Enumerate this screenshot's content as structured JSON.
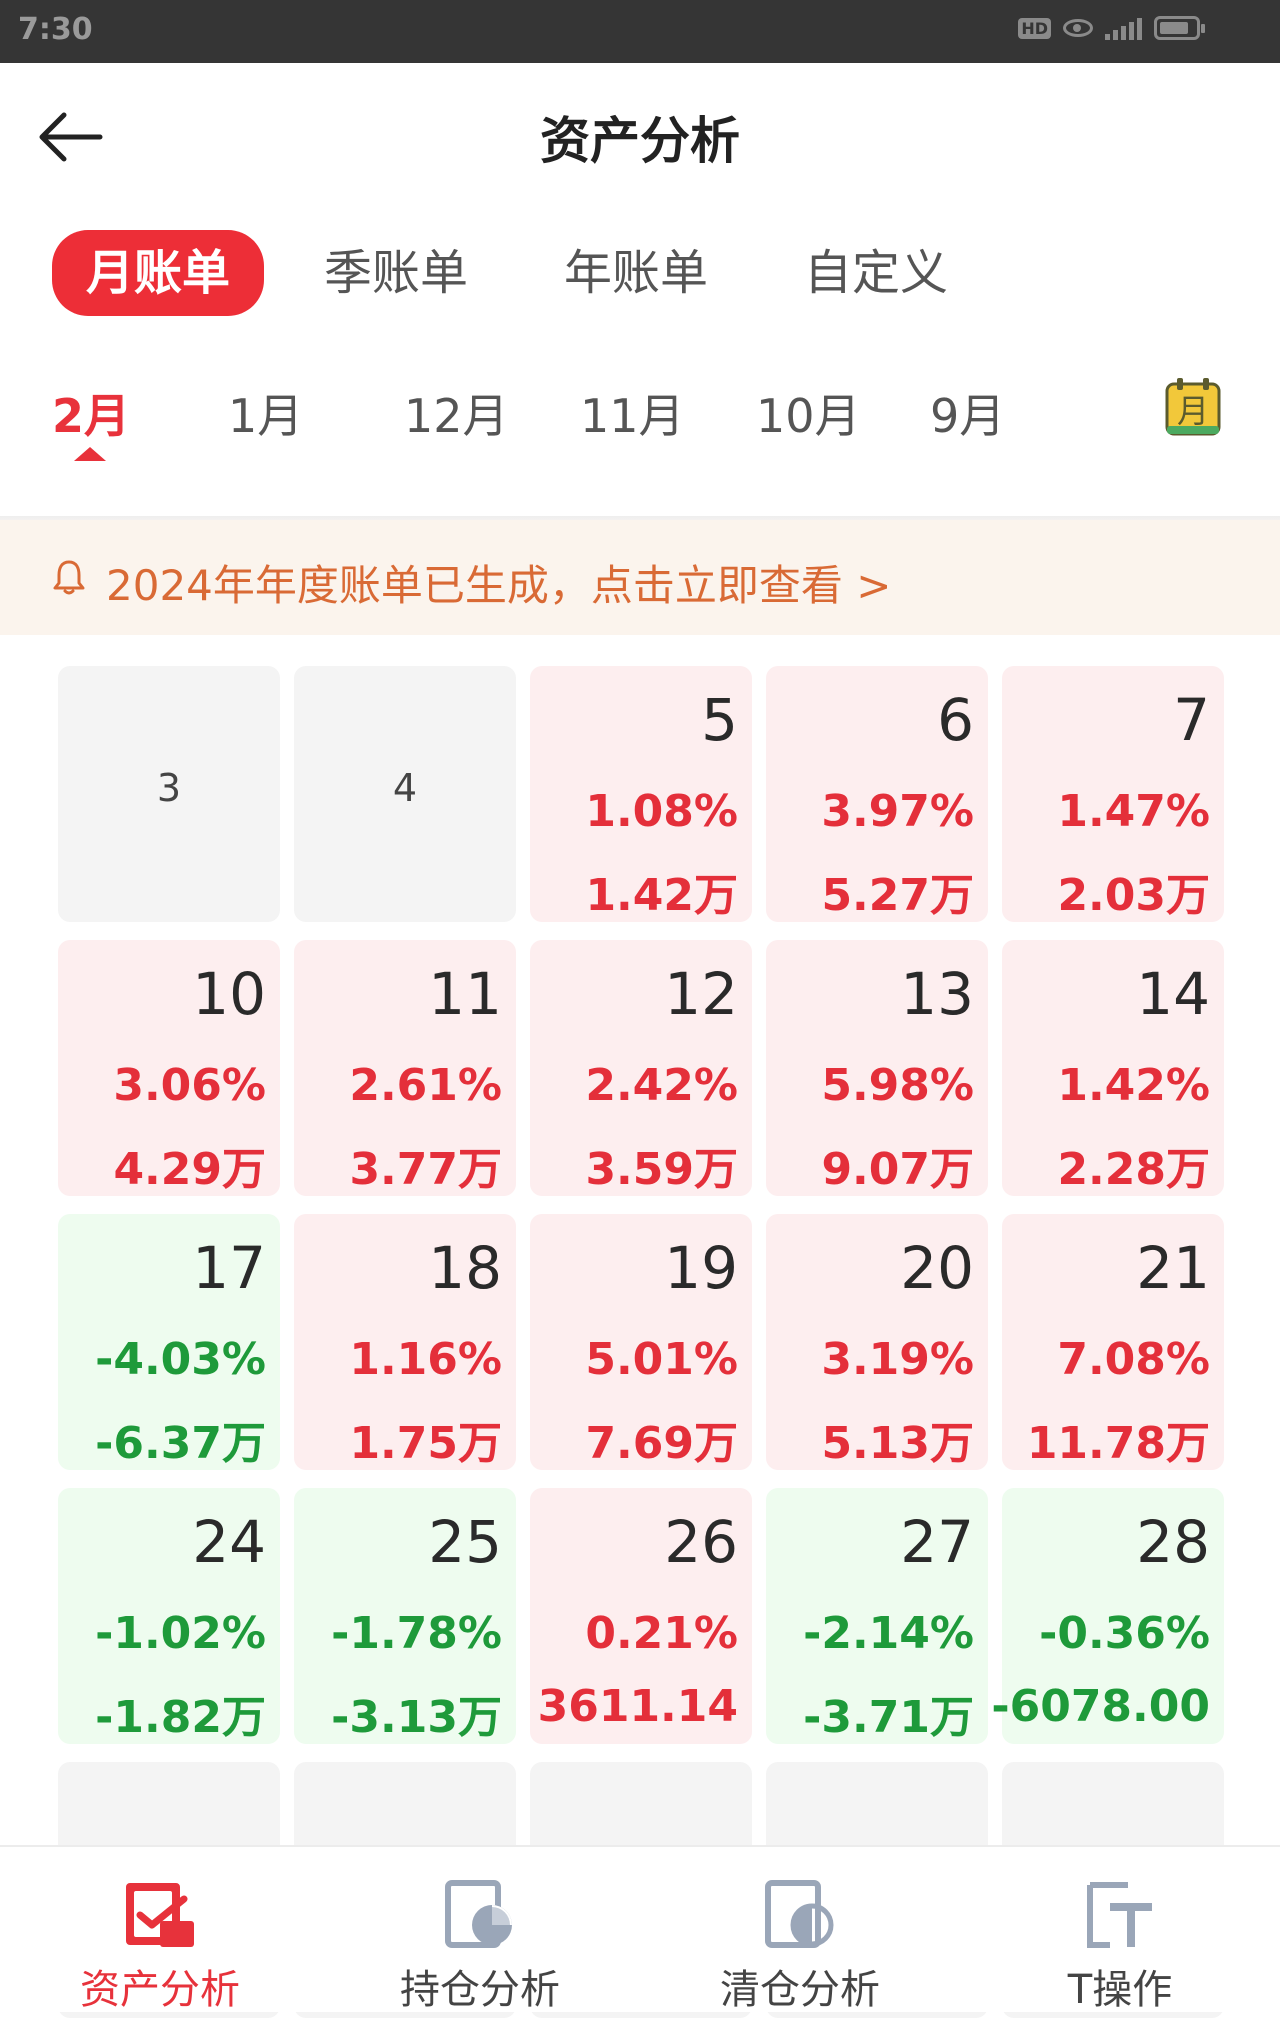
{
  "status_bar": {
    "time": "7:30",
    "hd": "HD",
    "network": "4G"
  },
  "header": {
    "title": "资产分析"
  },
  "period_tabs": [
    "月账单",
    "季账单",
    "年账单",
    "自定义"
  ],
  "months": [
    "2月",
    "1月",
    "12月",
    "11月",
    "10月",
    "9月"
  ],
  "calendar_icon_char": "月",
  "notice": {
    "text": "2024年年度账单已生成，点击立即查看 >"
  },
  "calendar": [
    [
      {
        "day": "3",
        "pct": "",
        "amt": "",
        "tone": "gray"
      },
      {
        "day": "4",
        "pct": "",
        "amt": "",
        "tone": "gray"
      },
      {
        "day": "5",
        "pct": "1.08%",
        "amt": "1.42万",
        "tone": "red"
      },
      {
        "day": "6",
        "pct": "3.97%",
        "amt": "5.27万",
        "tone": "red"
      },
      {
        "day": "7",
        "pct": "1.47%",
        "amt": "2.03万",
        "tone": "red"
      }
    ],
    [
      {
        "day": "10",
        "pct": "3.06%",
        "amt": "4.29万",
        "tone": "red"
      },
      {
        "day": "11",
        "pct": "2.61%",
        "amt": "3.77万",
        "tone": "red"
      },
      {
        "day": "12",
        "pct": "2.42%",
        "amt": "3.59万",
        "tone": "red"
      },
      {
        "day": "13",
        "pct": "5.98%",
        "amt": "9.07万",
        "tone": "red"
      },
      {
        "day": "14",
        "pct": "1.42%",
        "amt": "2.28万",
        "tone": "red"
      }
    ],
    [
      {
        "day": "17",
        "pct": "-4.03%",
        "amt": "-6.37万",
        "tone": "green"
      },
      {
        "day": "18",
        "pct": "1.16%",
        "amt": "1.75万",
        "tone": "red"
      },
      {
        "day": "19",
        "pct": "5.01%",
        "amt": "7.69万",
        "tone": "red"
      },
      {
        "day": "20",
        "pct": "3.19%",
        "amt": "5.13万",
        "tone": "red"
      },
      {
        "day": "21",
        "pct": "7.08%",
        "amt": "11.78万",
        "tone": "red"
      }
    ],
    [
      {
        "day": "24",
        "pct": "-1.02%",
        "amt": "-1.82万",
        "tone": "green"
      },
      {
        "day": "25",
        "pct": "-1.78%",
        "amt": "-3.13万",
        "tone": "green"
      },
      {
        "day": "26",
        "pct": "0.21%",
        "amt": "3611.14",
        "tone": "red"
      },
      {
        "day": "27",
        "pct": "-2.14%",
        "amt": "-3.71万",
        "tone": "green"
      },
      {
        "day": "28",
        "pct": "-0.36%",
        "amt": "-6078.00",
        "tone": "green"
      }
    ],
    [
      {
        "day": "",
        "pct": "",
        "amt": "",
        "tone": "gray"
      },
      {
        "day": "",
        "pct": "",
        "amt": "",
        "tone": "gray"
      },
      {
        "day": "",
        "pct": "",
        "amt": "",
        "tone": "gray"
      },
      {
        "day": "",
        "pct": "",
        "amt": "",
        "tone": "gray"
      },
      {
        "day": "",
        "pct": "",
        "amt": "",
        "tone": "gray"
      }
    ]
  ],
  "bottom_nav": [
    {
      "label": "资产分析",
      "icon": "asset-analysis-icon",
      "active": true
    },
    {
      "label": "持仓分析",
      "icon": "position-analysis-icon",
      "active": false
    },
    {
      "label": "清仓分析",
      "icon": "clearance-analysis-icon",
      "active": false
    },
    {
      "label": "T操作",
      "icon": "t-operation-icon",
      "active": false
    }
  ],
  "colors": {
    "accent": "#ed2e37",
    "up": "#e42f3a",
    "down": "#1e9a3a",
    "notice": "#d96a35"
  }
}
